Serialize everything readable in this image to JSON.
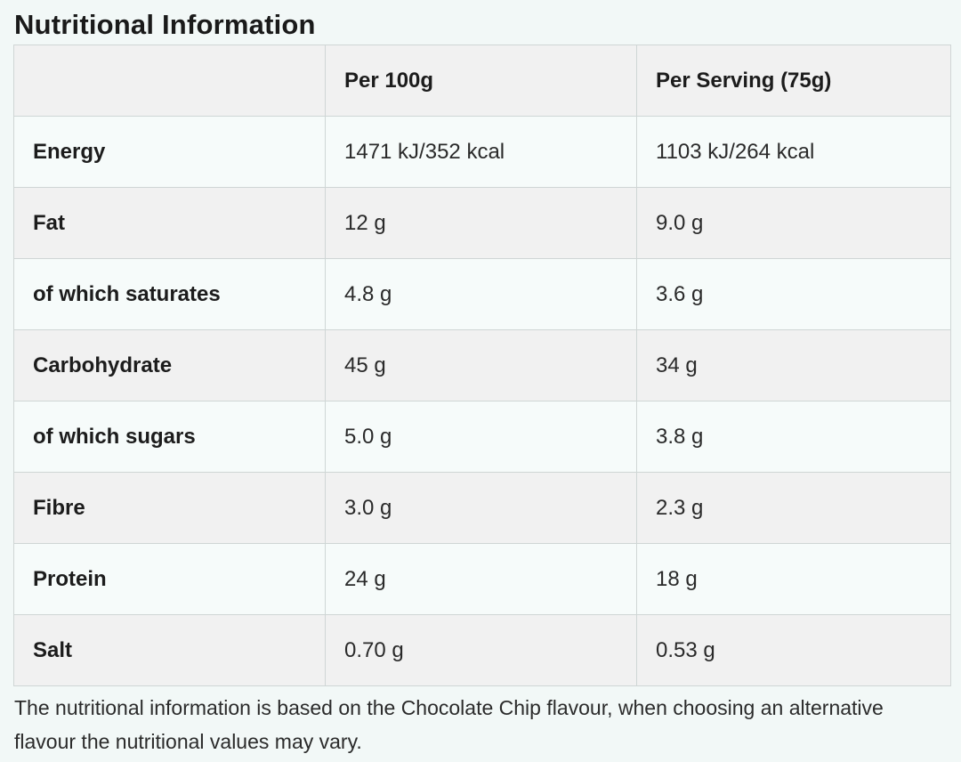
{
  "title": "Nutritional Information",
  "table": {
    "headers": [
      "",
      "Per 100g",
      "Per Serving (75g)"
    ],
    "rows": [
      {
        "nutrient": "Energy",
        "per_100g": "1471 kJ/352 kcal",
        "per_serving": "1103 kJ/264 kcal"
      },
      {
        "nutrient": "Fat",
        "per_100g": "12 g",
        "per_serving": "9.0 g"
      },
      {
        "nutrient": "of which saturates",
        "per_100g": "4.8 g",
        "per_serving": "3.6 g"
      },
      {
        "nutrient": "Carbohydrate",
        "per_100g": "45 g",
        "per_serving": "34 g"
      },
      {
        "nutrient": "of which sugars",
        "per_100g": "5.0 g",
        "per_serving": "3.8 g"
      },
      {
        "nutrient": "Fibre",
        "per_100g": "3.0 g",
        "per_serving": "2.3 g"
      },
      {
        "nutrient": "Protein",
        "per_100g": "24 g",
        "per_serving": "18 g"
      },
      {
        "nutrient": "Salt",
        "per_100g": "0.70 g",
        "per_serving": "0.53 g"
      }
    ]
  },
  "footnote": "The nutritional information is based on the Chocolate Chip flavour, when choosing an alternative flavour the nutritional values may vary.",
  "colors": {
    "page_background": "#f2f8f7",
    "row_shaded": "#f1f1f1",
    "row_light": "#f6fbfa",
    "border": "#cfd6d5",
    "text": "#1c1c1c"
  }
}
